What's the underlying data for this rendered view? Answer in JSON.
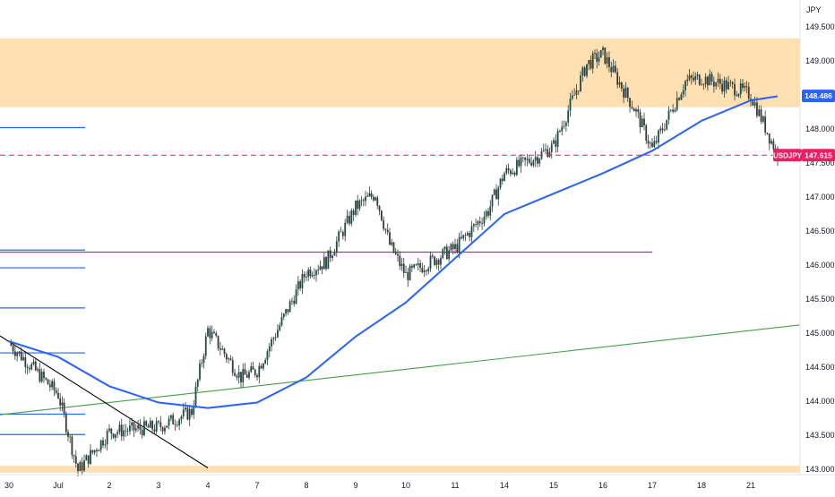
{
  "chart_data": {
    "type": "candlestick",
    "symbol": "USDJPY",
    "currency": "JPY",
    "ylim": [
      142.95,
      149.85
    ],
    "y_ticks": [
      143.0,
      143.5,
      144.0,
      144.5,
      145.0,
      145.5,
      146.0,
      146.5,
      147.0,
      147.5,
      148.0,
      148.5,
      149.0,
      149.5
    ],
    "x_labels": [
      "30",
      "Jul",
      "2",
      "3",
      "4",
      "7",
      "8",
      "9",
      "10",
      "11",
      "14",
      "15",
      "16",
      "17",
      "18",
      "21"
    ],
    "last_price": {
      "symbol": "USDJPY",
      "value": "147.615",
      "color": "#e91e63"
    },
    "ma_label": {
      "value": "148.486",
      "color": "#2962ff"
    },
    "zones": [
      {
        "name": "resistance-zone",
        "from": 148.32,
        "to": 149.33,
        "color": "#ffe0b2"
      },
      {
        "name": "support-zone",
        "from": 142.95,
        "to": 143.05,
        "color": "#ffe0b2"
      }
    ],
    "horizontal_levels": [
      {
        "y": 148.02,
        "color": "#2962ff",
        "span": "left"
      },
      {
        "y": 146.22,
        "color": "#2962ff",
        "span": "left"
      },
      {
        "y": 145.96,
        "color": "#2962ff",
        "span": "left"
      },
      {
        "y": 145.37,
        "color": "#2962ff",
        "span": "left"
      },
      {
        "y": 144.71,
        "color": "#2962ff",
        "span": "left"
      },
      {
        "y": 143.81,
        "color": "#2962ff",
        "span": "left"
      },
      {
        "y": 143.51,
        "color": "#2962ff",
        "span": "left"
      },
      {
        "y": 146.19,
        "color": "#9c27b0",
        "span": "to-day-17"
      }
    ],
    "trendlines": [
      {
        "name": "green-trendline",
        "from": [
          "30",
          143.8
        ],
        "to": [
          "21+",
          145.12
        ],
        "color": "#43a047"
      },
      {
        "name": "black-downtrend-line",
        "from": [
          "30",
          144.96
        ],
        "to": [
          "4",
          143.02
        ],
        "color": "#000000"
      }
    ],
    "moving_average": {
      "color": "#2962ff",
      "points": [
        [
          "30",
          144.88
        ],
        [
          "Jul",
          144.65
        ],
        [
          "2",
          144.22
        ],
        [
          "3",
          143.98
        ],
        [
          "4",
          143.9
        ],
        [
          "7",
          143.98
        ],
        [
          "8",
          144.35
        ],
        [
          "9",
          144.95
        ],
        [
          "10",
          145.45
        ],
        [
          "11",
          146.1
        ],
        [
          "14",
          146.75
        ],
        [
          "15",
          147.05
        ],
        [
          "16",
          147.35
        ],
        [
          "17",
          147.68
        ],
        [
          "18",
          148.12
        ],
        [
          "21",
          148.42
        ],
        [
          "21+",
          148.48
        ]
      ]
    },
    "price_path": [
      [
        "30",
        144.85
      ],
      [
        "Jul",
        144.1
      ],
      [
        "Jul+",
        142.98
      ],
      [
        "2",
        143.55
      ],
      [
        "3",
        143.62
      ],
      [
        "4-",
        143.85
      ],
      [
        "4",
        145.05
      ],
      [
        "7-",
        144.35
      ],
      [
        "7",
        144.45
      ],
      [
        "8",
        145.9
      ],
      [
        "8+",
        146.05
      ],
      [
        "9",
        146.85
      ],
      [
        "9+",
        147.05
      ],
      [
        "10-",
        146.3
      ],
      [
        "10",
        145.85
      ],
      [
        "11",
        146.25
      ],
      [
        "14-",
        146.8
      ],
      [
        "14",
        147.35
      ],
      [
        "15-",
        147.6
      ],
      [
        "15",
        147.75
      ],
      [
        "16-",
        148.95
      ],
      [
        "16",
        149.1
      ],
      [
        "17-",
        148.25
      ],
      [
        "17",
        147.7
      ],
      [
        "18-",
        148.7
      ],
      [
        "18",
        148.75
      ],
      [
        "21-",
        148.6
      ],
      [
        "21",
        148.5
      ],
      [
        "21+",
        147.615
      ]
    ]
  }
}
